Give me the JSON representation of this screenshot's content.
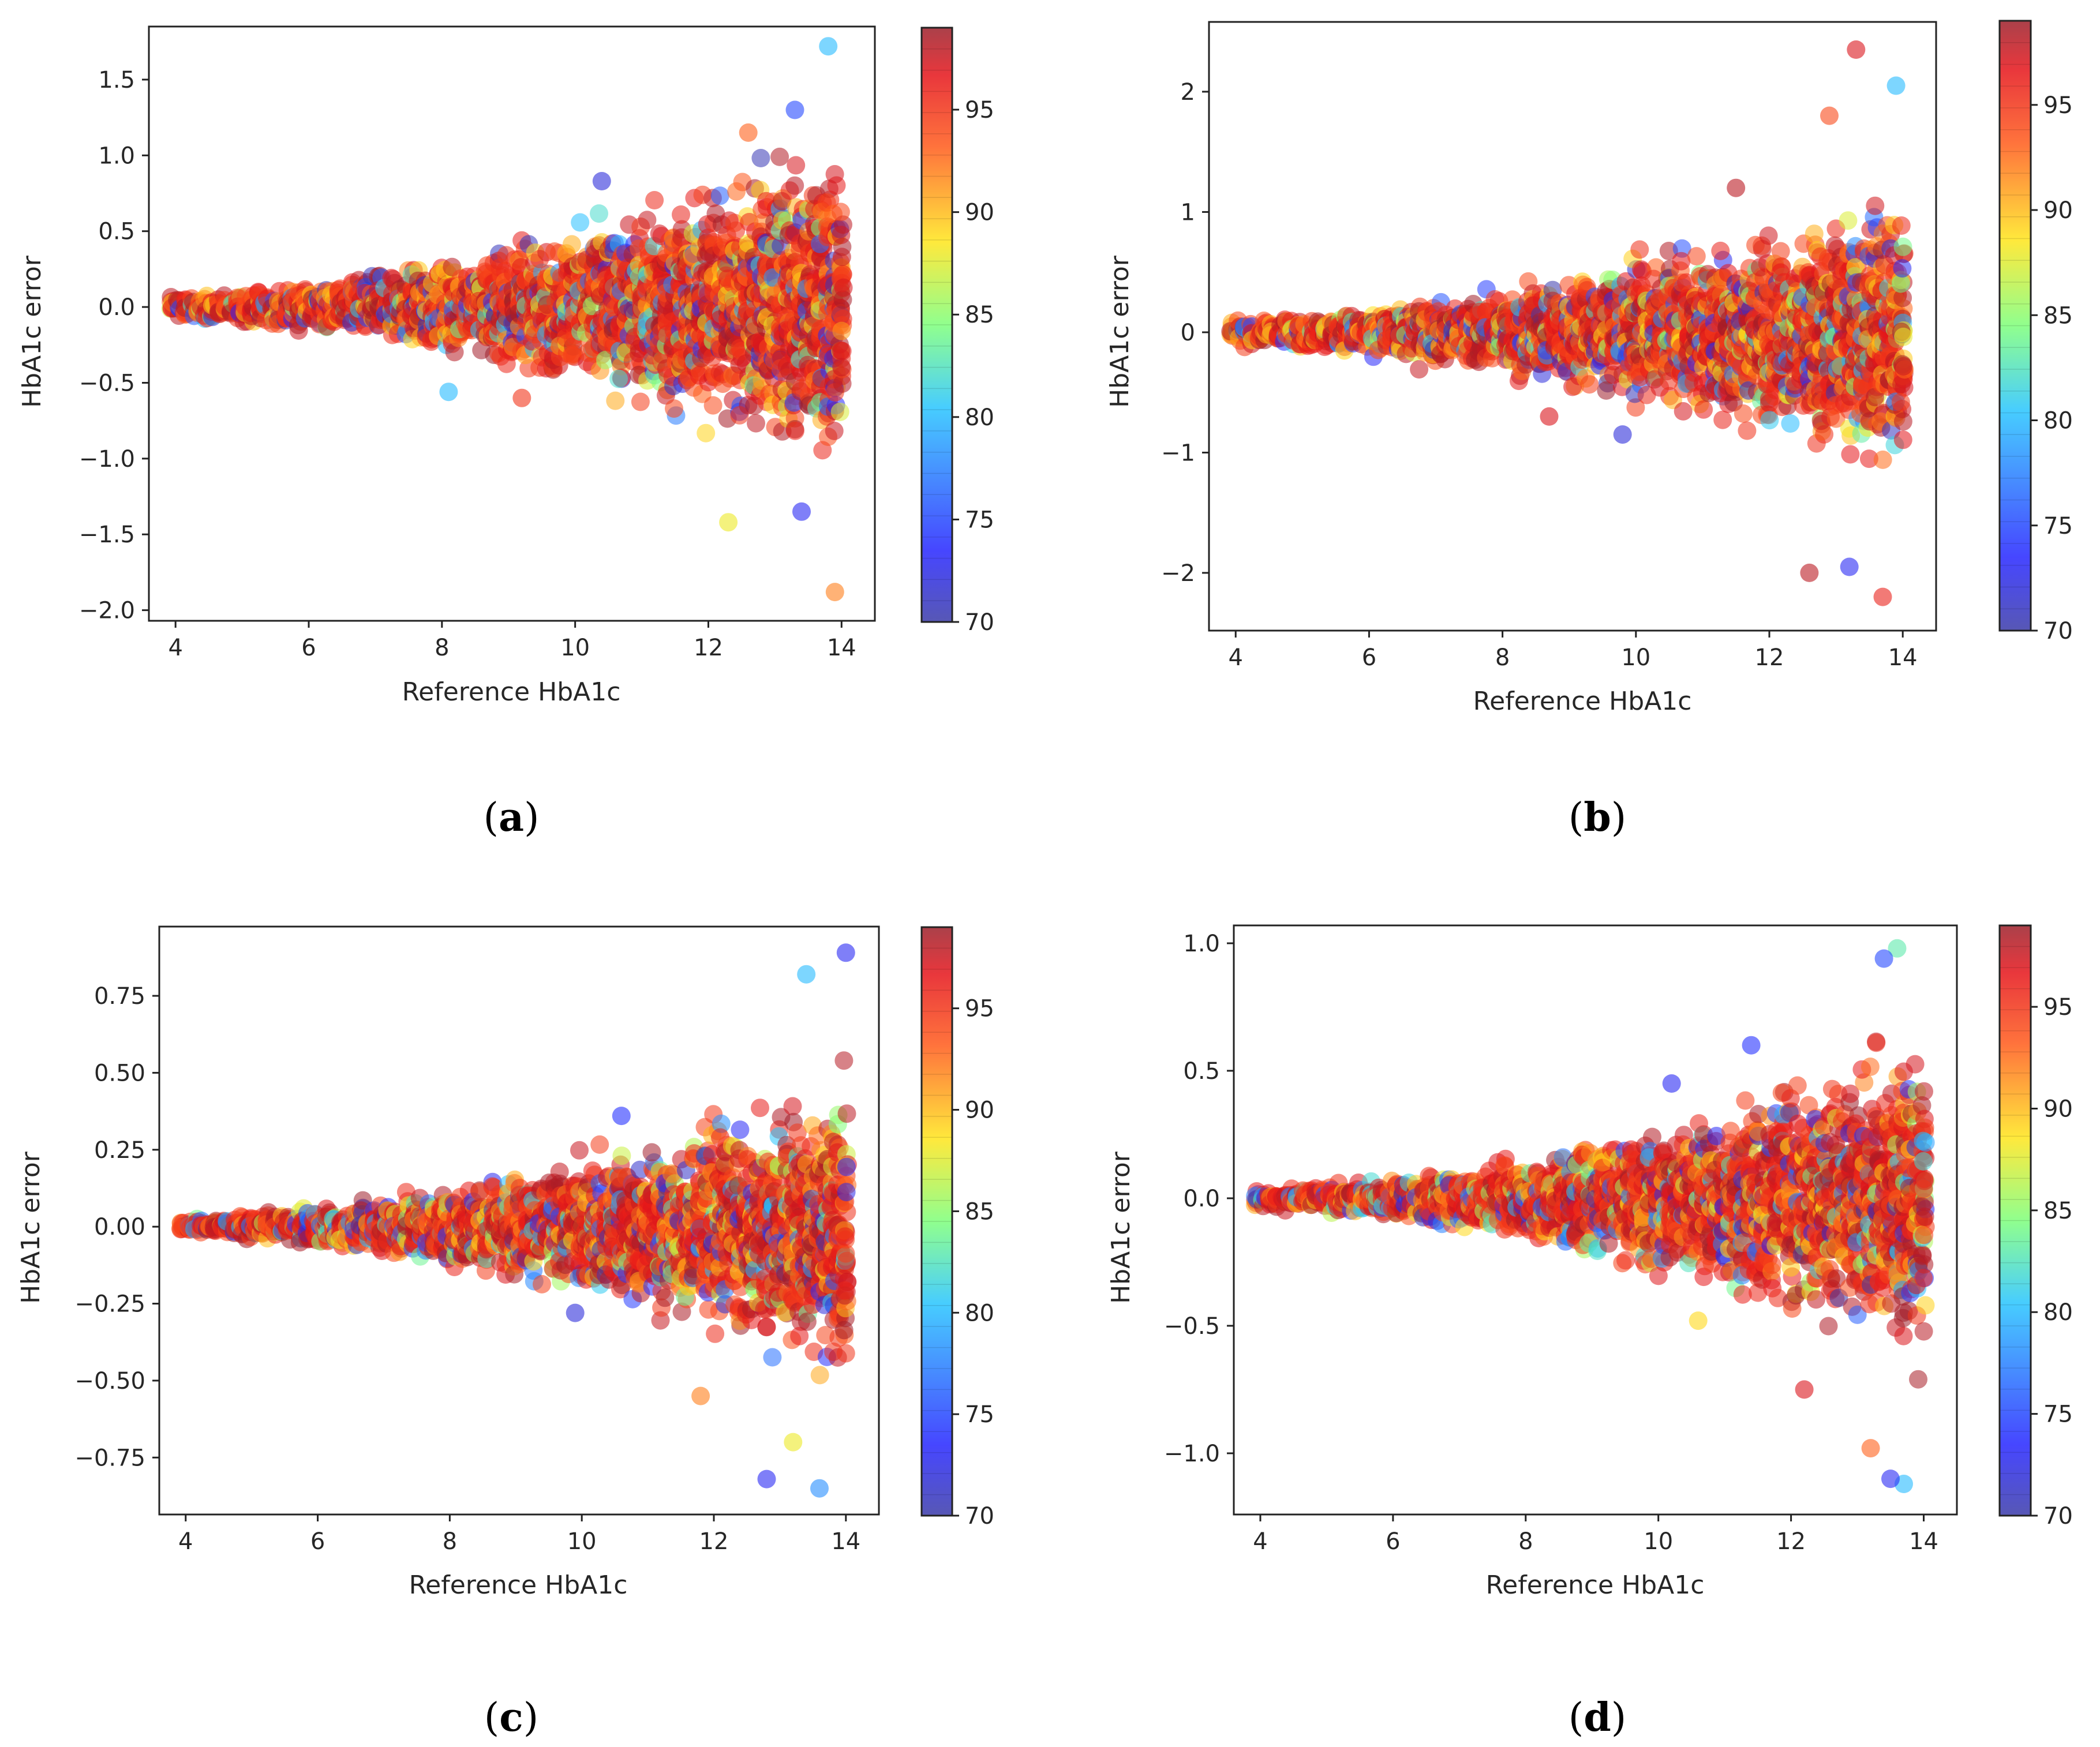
{
  "figure": {
    "captions": [
      "a",
      "b",
      "c",
      "d"
    ]
  },
  "chart_data": [
    {
      "panel": "a",
      "type": "scatter",
      "title": "",
      "xlabel": "Reference HbA1c",
      "ylabel": "HbA1c error",
      "xlim": [
        3.6,
        14.5
      ],
      "ylim": [
        -2.07,
        1.85
      ],
      "xticks": [
        4,
        6,
        8,
        10,
        12,
        14
      ],
      "xtick_labels": [
        "4",
        "6",
        "8",
        "10",
        "12",
        "14"
      ],
      "yticks": [
        -2.0,
        -1.5,
        -1.0,
        -0.5,
        0.0,
        0.5,
        1.0,
        1.5
      ],
      "ytick_labels": [
        "−2.0",
        "−1.5",
        "−1.0",
        "−0.5",
        "0.0",
        "0.5",
        "1.0",
        "1.5"
      ],
      "spread_at_min": 0.15,
      "spread_at_max": 1.9,
      "colorbar": {
        "range": [
          70,
          99
        ],
        "ticks": [
          70,
          75,
          80,
          85,
          90,
          95
        ],
        "tick_labels": [
          "70",
          "75",
          "80",
          "85",
          "90",
          "95"
        ],
        "colormap": "jet"
      },
      "outliers": [
        {
          "x": 13.8,
          "y": 1.72,
          "c": 80
        },
        {
          "x": 13.3,
          "y": 1.3,
          "c": 75
        },
        {
          "x": 12.6,
          "y": 1.15,
          "c": 93
        },
        {
          "x": 10.4,
          "y": 0.83,
          "c": 72
        },
        {
          "x": 8.1,
          "y": -0.56,
          "c": 80
        },
        {
          "x": 12.3,
          "y": -1.42,
          "c": 88
        },
        {
          "x": 13.9,
          "y": -1.88,
          "c": 92
        },
        {
          "x": 13.4,
          "y": -1.35,
          "c": 73
        },
        {
          "x": 9.2,
          "y": -0.6,
          "c": 95
        }
      ]
    },
    {
      "panel": "b",
      "type": "scatter",
      "title": "",
      "xlabel": "Reference HbA1c",
      "ylabel": "HbA1c error",
      "xlim": [
        3.6,
        14.5
      ],
      "ylim": [
        -2.48,
        2.58
      ],
      "xticks": [
        4,
        6,
        8,
        10,
        12,
        14
      ],
      "xtick_labels": [
        "4",
        "6",
        "8",
        "10",
        "12",
        "14"
      ],
      "yticks": [
        -2,
        -1,
        0,
        1,
        2
      ],
      "ytick_labels": [
        "−2",
        "−1",
        "0",
        "1",
        "2"
      ],
      "spread_at_min": 0.2,
      "spread_at_max": 2.1,
      "colorbar": {
        "range": [
          70,
          99
        ],
        "ticks": [
          70,
          75,
          80,
          85,
          90,
          95
        ],
        "tick_labels": [
          "70",
          "75",
          "80",
          "85",
          "90",
          "95"
        ],
        "colormap": "jet"
      },
      "outliers": [
        {
          "x": 13.3,
          "y": 2.35,
          "c": 97
        },
        {
          "x": 13.9,
          "y": 2.05,
          "c": 80
        },
        {
          "x": 12.9,
          "y": 1.8,
          "c": 94
        },
        {
          "x": 11.5,
          "y": 1.2,
          "c": 98
        },
        {
          "x": 8.7,
          "y": -0.7,
          "c": 97
        },
        {
          "x": 9.8,
          "y": -0.85,
          "c": 72
        },
        {
          "x": 12.6,
          "y": -2.0,
          "c": 98
        },
        {
          "x": 13.7,
          "y": -2.2,
          "c": 96
        },
        {
          "x": 13.2,
          "y": -1.95,
          "c": 73
        }
      ]
    },
    {
      "panel": "c",
      "type": "scatter",
      "title": "",
      "xlabel": "Reference HbA1c",
      "ylabel": "HbA1c error",
      "xlim": [
        3.6,
        14.5
      ],
      "ylim": [
        -0.935,
        0.975
      ],
      "xticks": [
        4,
        6,
        8,
        10,
        12,
        14
      ],
      "xtick_labels": [
        "4",
        "6",
        "8",
        "10",
        "12",
        "14"
      ],
      "yticks": [
        -0.75,
        -0.5,
        -0.25,
        0.0,
        0.25,
        0.5,
        0.75
      ],
      "ytick_labels": [
        "−0.75",
        "−0.50",
        "−0.25",
        "0.00",
        "0.25",
        "0.50",
        "0.75"
      ],
      "spread_at_min": 0.05,
      "spread_at_max": 0.85,
      "colorbar": {
        "range": [
          70,
          99
        ],
        "ticks": [
          70,
          75,
          80,
          85,
          90,
          95
        ],
        "tick_labels": [
          "70",
          "75",
          "80",
          "85",
          "90",
          "95"
        ],
        "colormap": "jet"
      },
      "outliers": [
        {
          "x": 14.0,
          "y": 0.89,
          "c": 73
        },
        {
          "x": 13.4,
          "y": 0.82,
          "c": 80
        },
        {
          "x": 10.6,
          "y": 0.36,
          "c": 74
        },
        {
          "x": 12.8,
          "y": -0.82,
          "c": 73
        },
        {
          "x": 13.6,
          "y": -0.85,
          "c": 78
        },
        {
          "x": 11.8,
          "y": -0.55,
          "c": 92
        },
        {
          "x": 13.2,
          "y": -0.7,
          "c": 88
        },
        {
          "x": 9.9,
          "y": -0.28,
          "c": 72
        }
      ]
    },
    {
      "panel": "d",
      "type": "scatter",
      "title": "",
      "xlabel": "Reference HbA1c",
      "ylabel": "HbA1c error",
      "xlim": [
        3.6,
        14.5
      ],
      "ylim": [
        -1.24,
        1.07
      ],
      "xticks": [
        4,
        6,
        8,
        10,
        12,
        14
      ],
      "xtick_labels": [
        "4",
        "6",
        "8",
        "10",
        "12",
        "14"
      ],
      "yticks": [
        -1.0,
        -0.5,
        0.0,
        0.5,
        1.0
      ],
      "ytick_labels": [
        "−1.0",
        "−0.5",
        "0.0",
        "0.5",
        "1.0"
      ],
      "spread_at_min": 0.07,
      "spread_at_max": 1.1,
      "colorbar": {
        "range": [
          70,
          99
        ],
        "ticks": [
          70,
          75,
          80,
          85,
          90,
          95
        ],
        "tick_labels": [
          "70",
          "75",
          "80",
          "85",
          "90",
          "95"
        ],
        "colormap": "jet"
      },
      "outliers": [
        {
          "x": 13.6,
          "y": 0.98,
          "c": 83
        },
        {
          "x": 13.4,
          "y": 0.94,
          "c": 75
        },
        {
          "x": 11.4,
          "y": 0.6,
          "c": 74
        },
        {
          "x": 10.2,
          "y": 0.45,
          "c": 73
        },
        {
          "x": 12.2,
          "y": -0.75,
          "c": 97
        },
        {
          "x": 13.7,
          "y": -1.12,
          "c": 80
        },
        {
          "x": 13.5,
          "y": -1.1,
          "c": 73
        },
        {
          "x": 10.6,
          "y": -0.48,
          "c": 89
        },
        {
          "x": 13.2,
          "y": -0.98,
          "c": 93
        }
      ]
    }
  ]
}
